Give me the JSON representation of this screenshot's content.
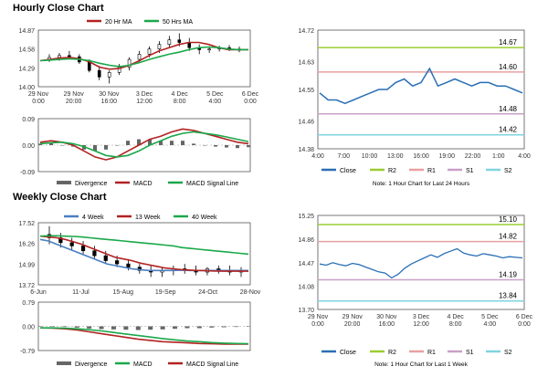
{
  "page": {
    "hourly_title": "Hourly Close Chart",
    "weekly_title": "Weekly Close Chart"
  },
  "colors": {
    "green_line": "#1aa84a",
    "red_line": "#b22222",
    "blue_line": "#4a7fc1",
    "candle": "#000000",
    "r2": "#9acd32",
    "r1": "#e8a0a0",
    "s1": "#c8a0c8",
    "s2": "#7fd4e0",
    "close": "#2a6fb5",
    "divergence": "#666666",
    "axis": "#555555"
  },
  "chart_data": [
    {
      "id": "hourly-ma",
      "type": "line",
      "legend": [
        "20 Hr MA",
        "50 Hrs MA"
      ],
      "x_ticks": [
        "29 Nov\n0:00",
        "29 Nov\n20:00",
        "30 Nov\n16:00",
        "3 Dec\n12:00",
        "4 Dec\n8:00",
        "5 Dec\n4:00",
        "6 Dec\n0:00"
      ],
      "y_ticks": [
        "14.87",
        "14.58",
        "14.29",
        "14.00"
      ],
      "ylim": [
        14.0,
        14.87
      ],
      "series": [
        {
          "name": "20 Hr MA",
          "color": "red",
          "values": [
            14.4,
            14.42,
            14.44,
            14.45,
            14.43,
            14.38,
            14.3,
            14.27,
            14.28,
            14.33,
            14.4,
            14.48,
            14.55,
            14.6,
            14.65,
            14.68,
            14.68,
            14.65,
            14.6,
            14.57,
            14.57,
            14.57
          ]
        },
        {
          "name": "50 Hrs MA",
          "color": "green",
          "values": [
            14.4,
            14.41,
            14.42,
            14.43,
            14.42,
            14.4,
            14.36,
            14.33,
            14.31,
            14.33,
            14.37,
            14.42,
            14.46,
            14.5,
            14.53,
            14.57,
            14.6,
            14.61,
            14.6,
            14.58,
            14.57,
            14.57
          ]
        }
      ],
      "ohlc": [
        [
          14.42,
          14.5,
          14.38,
          14.45
        ],
        [
          14.45,
          14.52,
          14.4,
          14.48
        ],
        [
          14.48,
          14.55,
          14.44,
          14.46
        ],
        [
          14.46,
          14.5,
          14.35,
          14.38
        ],
        [
          14.38,
          14.42,
          14.22,
          14.25
        ],
        [
          14.25,
          14.32,
          14.1,
          14.15
        ],
        [
          14.15,
          14.25,
          14.05,
          14.22
        ],
        [
          14.22,
          14.35,
          14.18,
          14.3
        ],
        [
          14.3,
          14.45,
          14.25,
          14.42
        ],
        [
          14.42,
          14.55,
          14.38,
          14.5
        ],
        [
          14.5,
          14.62,
          14.45,
          14.58
        ],
        [
          14.58,
          14.7,
          14.52,
          14.65
        ],
        [
          14.65,
          14.78,
          14.6,
          14.72
        ],
        [
          14.72,
          14.82,
          14.62,
          14.68
        ],
        [
          14.68,
          14.75,
          14.55,
          14.6
        ],
        [
          14.6,
          14.65,
          14.5,
          14.57
        ],
        [
          14.57,
          14.62,
          14.52,
          14.58
        ],
        [
          14.58,
          14.63,
          14.54,
          14.6
        ],
        [
          14.6,
          14.64,
          14.55,
          14.58
        ],
        [
          14.58,
          14.62,
          14.53,
          14.56
        ]
      ]
    },
    {
      "id": "hourly-macd",
      "type": "line",
      "legend": [
        "Divergence",
        "MACD",
        "MACD Signal Line"
      ],
      "y_ticks": [
        "0.09",
        "0.00",
        "-0.09"
      ],
      "ylim": [
        -0.09,
        0.09
      ],
      "series": [
        {
          "name": "MACD",
          "color": "red",
          "values": [
            0.01,
            0.015,
            0.01,
            0.0,
            -0.02,
            -0.04,
            -0.05,
            -0.04,
            -0.02,
            0.0,
            0.02,
            0.03,
            0.045,
            0.055,
            0.05,
            0.04,
            0.03,
            0.02,
            0.01,
            0.005
          ]
        },
        {
          "name": "MACD Signal Line",
          "color": "green",
          "values": [
            0.005,
            0.008,
            0.01,
            0.005,
            -0.005,
            -0.02,
            -0.035,
            -0.04,
            -0.035,
            -0.02,
            0.0,
            0.015,
            0.03,
            0.04,
            0.045,
            0.04,
            0.035,
            0.028,
            0.02,
            0.012
          ]
        },
        {
          "name": "Divergence",
          "color": "grey",
          "values": [
            0.005,
            0.007,
            0.0,
            -0.005,
            -0.015,
            -0.02,
            -0.015,
            0.0,
            0.015,
            0.02,
            0.02,
            0.015,
            0.015,
            0.015,
            0.005,
            0.0,
            -0.005,
            -0.008,
            -0.01,
            -0.007
          ]
        }
      ]
    },
    {
      "id": "hourly-close",
      "type": "line",
      "xlabel_note": "Note: 1 Hour Chart for Last 24 Hours",
      "x_ticks": [
        "4:00",
        "7:00",
        "10:00",
        "13:00",
        "16:00",
        "19:00",
        "22:00",
        "1:00",
        "4:00"
      ],
      "y_ticks": [
        "14.72",
        "14.63",
        "14.55",
        "14.46",
        "14.38"
      ],
      "ylim": [
        14.38,
        14.72
      ],
      "levels": [
        {
          "name": "R2",
          "value": 14.67,
          "label": "14.67"
        },
        {
          "name": "R1",
          "value": 14.6,
          "label": "14.60"
        },
        {
          "name": "S1",
          "value": 14.48,
          "label": "14.48"
        },
        {
          "name": "S2",
          "value": 14.42,
          "label": "14.42"
        }
      ],
      "legend": [
        "Close",
        "R2",
        "R1",
        "S1",
        "S2"
      ],
      "values": [
        14.54,
        14.52,
        14.52,
        14.51,
        14.52,
        14.53,
        14.54,
        14.55,
        14.55,
        14.57,
        14.58,
        14.56,
        14.57,
        14.61,
        14.56,
        14.57,
        14.58,
        14.57,
        14.56,
        14.57,
        14.57,
        14.56,
        14.56,
        14.55,
        14.54
      ]
    },
    {
      "id": "weekly-ma",
      "type": "line",
      "legend": [
        "4 Week",
        "13 Week",
        "40 Week"
      ],
      "x_ticks": [
        "6-Jun",
        "11-Jul",
        "15-Aug",
        "19-Sep",
        "24-Oct",
        "28-Nov"
      ],
      "y_ticks": [
        "17.52",
        "16.26",
        "14.99",
        "13.72"
      ],
      "ylim": [
        13.72,
        17.52
      ],
      "series": [
        {
          "name": "4 Week",
          "color": "blue",
          "values": [
            16.5,
            16.4,
            16.2,
            16.0,
            15.8,
            15.6,
            15.4,
            15.2,
            15.0,
            14.9,
            14.8,
            14.7,
            14.65,
            14.6,
            14.6,
            14.6,
            14.6,
            14.62,
            14.6,
            14.6,
            14.6,
            14.6,
            14.6,
            14.6,
            14.6,
            14.6
          ]
        },
        {
          "name": "13 Week",
          "color": "red",
          "values": [
            16.7,
            16.65,
            16.6,
            16.5,
            16.35,
            16.2,
            16.0,
            15.8,
            15.6,
            15.4,
            15.3,
            15.2,
            15.05,
            14.95,
            14.85,
            14.75,
            14.7,
            14.65,
            14.62,
            14.6,
            14.58,
            14.56,
            14.55,
            14.55,
            14.55,
            14.55
          ]
        },
        {
          "name": "40 Week",
          "color": "green",
          "values": [
            16.7,
            16.72,
            16.72,
            16.7,
            16.68,
            16.65,
            16.6,
            16.55,
            16.5,
            16.45,
            16.4,
            16.35,
            16.3,
            16.25,
            16.2,
            16.15,
            16.1,
            16.0,
            15.95,
            15.9,
            15.85,
            15.8,
            15.75,
            15.7,
            15.65,
            15.6
          ]
        }
      ],
      "ohlc": [
        [
          16.8,
          17.3,
          16.2,
          16.6
        ],
        [
          16.6,
          16.9,
          16.0,
          16.3
        ],
        [
          16.3,
          16.6,
          15.8,
          16.1
        ],
        [
          16.1,
          16.4,
          15.6,
          15.8
        ],
        [
          15.8,
          16.1,
          15.3,
          15.5
        ],
        [
          15.5,
          15.8,
          15.0,
          15.2
        ],
        [
          15.2,
          15.5,
          14.8,
          15.0
        ],
        [
          15.0,
          15.3,
          14.6,
          14.8
        ],
        [
          14.8,
          15.0,
          14.4,
          14.6
        ],
        [
          14.6,
          14.9,
          14.2,
          14.5
        ],
        [
          14.5,
          14.8,
          14.2,
          14.6
        ],
        [
          14.6,
          14.9,
          14.3,
          14.7
        ],
        [
          14.7,
          15.0,
          14.4,
          14.6
        ],
        [
          14.6,
          14.9,
          14.3,
          14.5
        ],
        [
          14.5,
          14.8,
          14.3,
          14.7
        ],
        [
          14.7,
          14.9,
          14.4,
          14.6
        ],
        [
          14.6,
          14.9,
          14.3,
          14.5
        ],
        [
          14.5,
          14.8,
          14.2,
          14.6
        ]
      ]
    },
    {
      "id": "weekly-macd",
      "type": "line",
      "legend": [
        "Divergence",
        "MACD",
        "MACD Signal Line"
      ],
      "y_ticks": [
        "0.79",
        "0.00",
        "-0.79"
      ],
      "ylim": [
        -0.79,
        0.79
      ],
      "series": [
        {
          "name": "MACD",
          "color": "red",
          "values": [
            -0.05,
            -0.06,
            -0.08,
            -0.12,
            -0.18,
            -0.24,
            -0.3,
            -0.36,
            -0.42,
            -0.46,
            -0.5,
            -0.52,
            -0.54,
            -0.56,
            -0.57,
            -0.58,
            -0.58,
            -0.58
          ]
        },
        {
          "name": "MACD Signal Line",
          "color": "green",
          "values": [
            -0.05,
            -0.05,
            -0.06,
            -0.08,
            -0.11,
            -0.15,
            -0.2,
            -0.25,
            -0.3,
            -0.35,
            -0.4,
            -0.44,
            -0.48,
            -0.5,
            -0.53,
            -0.55,
            -0.56,
            -0.57
          ]
        },
        {
          "name": "Divergence",
          "color": "grey",
          "values": [
            0.0,
            -0.01,
            -0.02,
            -0.04,
            -0.07,
            -0.09,
            -0.1,
            -0.11,
            -0.12,
            -0.11,
            -0.1,
            -0.08,
            -0.06,
            -0.06,
            -0.04,
            -0.03,
            -0.02,
            -0.01
          ]
        }
      ]
    },
    {
      "id": "weekly-close",
      "type": "line",
      "xlabel_note": "Note: 1 Hour Chart for Last 1 Week",
      "x_ticks": [
        "29 Nov\n0:00",
        "29 Nov\n20:00",
        "30 Nov\n16:00",
        "3 Dec\n12:00",
        "4 Dec\n8:00",
        "5 Dec\n4:00",
        "6 Dec\n0:00"
      ],
      "y_ticks": [
        "15.25",
        "14.86",
        "14.47",
        "14.08",
        "13.70"
      ],
      "ylim": [
        13.7,
        15.25
      ],
      "levels": [
        {
          "name": "R2",
          "value": 15.1,
          "label": "15.10"
        },
        {
          "name": "R1",
          "value": 14.82,
          "label": "14.82"
        },
        {
          "name": "S1",
          "value": 14.19,
          "label": "14.19"
        },
        {
          "name": "S2",
          "value": 13.84,
          "label": "13.84"
        }
      ],
      "legend": [
        "Close",
        "R2",
        "R1",
        "S1",
        "S2"
      ],
      "values": [
        14.45,
        14.43,
        14.47,
        14.44,
        14.42,
        14.46,
        14.44,
        14.4,
        14.36,
        14.32,
        14.3,
        14.22,
        14.28,
        14.38,
        14.45,
        14.5,
        14.55,
        14.6,
        14.56,
        14.62,
        14.66,
        14.7,
        14.63,
        14.6,
        14.58,
        14.62,
        14.6,
        14.58,
        14.55,
        14.57,
        14.56,
        14.55
      ]
    }
  ]
}
